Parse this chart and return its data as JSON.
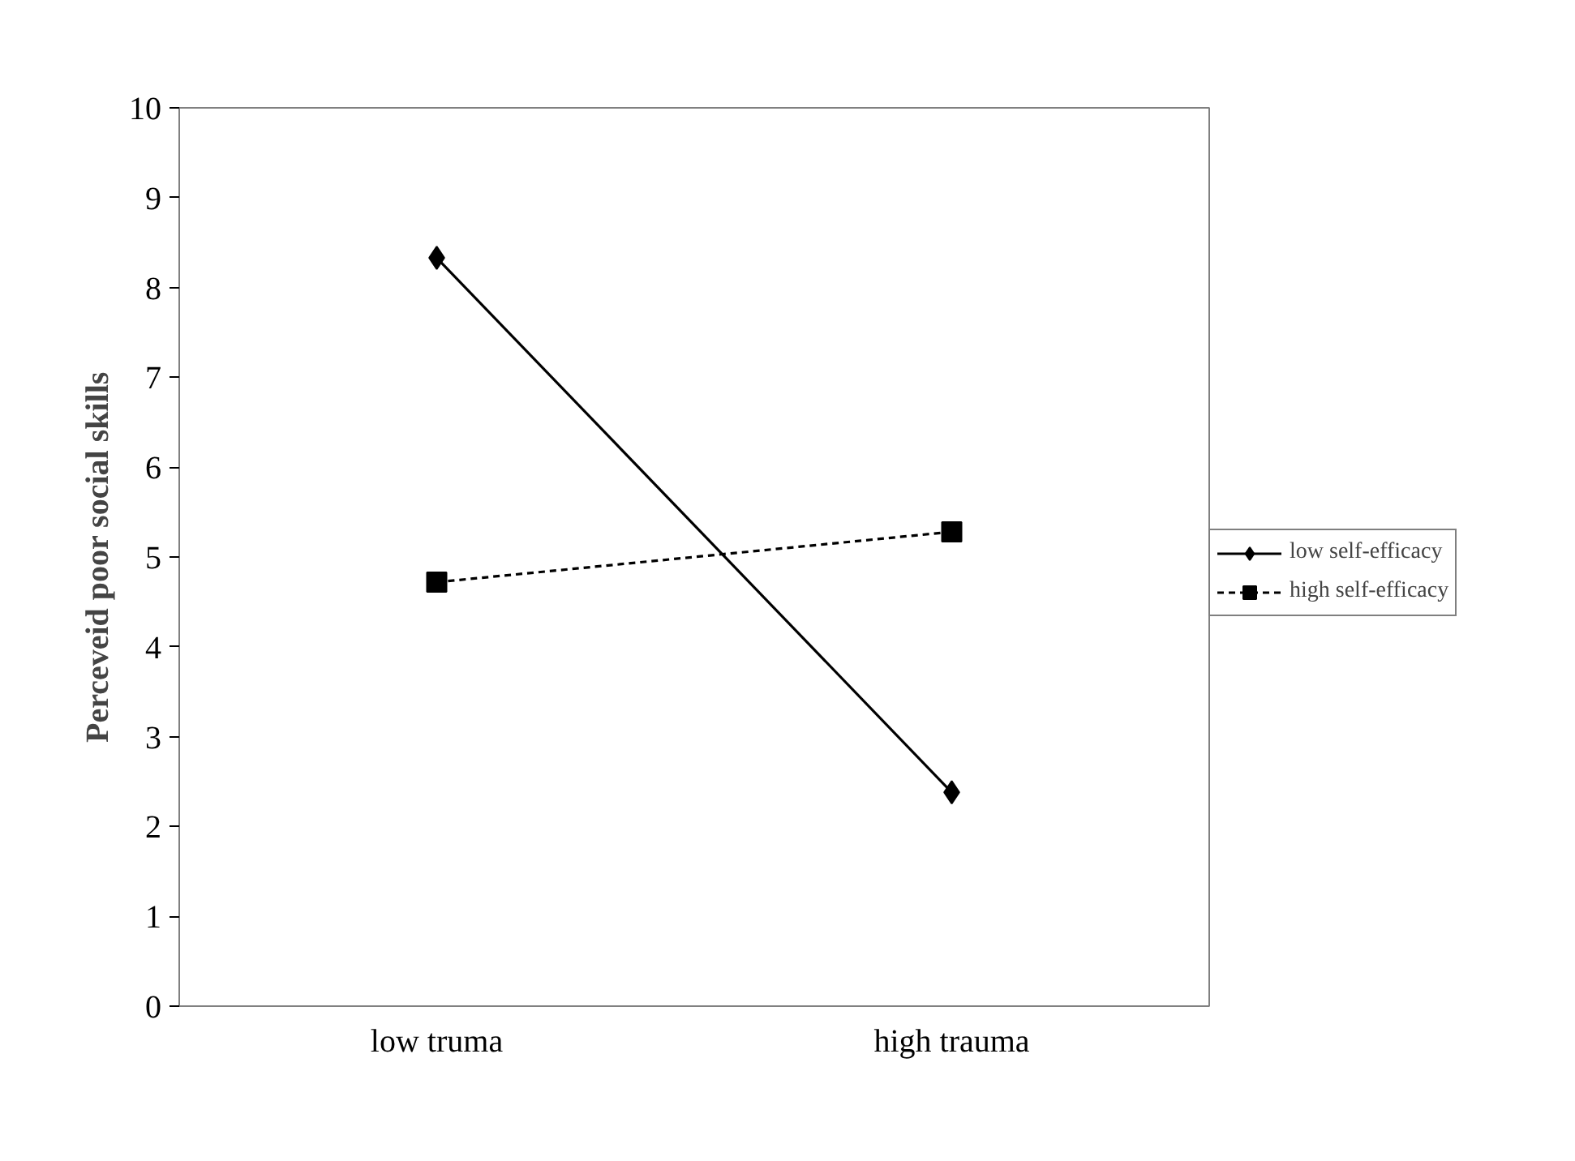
{
  "chart_data": {
    "type": "line",
    "ylabel": "Perceveid poor social skills",
    "categories": [
      "low truma",
      "high trauma"
    ],
    "series": [
      {
        "name": "low self-efficacy",
        "color": "#000000",
        "values": [
          8.33,
          2.38
        ],
        "marker": "diamond",
        "line_style": "solid"
      },
      {
        "name": "high self-efficacy",
        "color": "#000000",
        "values": [
          4.72,
          5.28
        ],
        "marker": "square",
        "line_style": "dashed"
      }
    ],
    "ylim": [
      0,
      10
    ],
    "yticks": [
      0,
      1,
      2,
      3,
      4,
      5,
      6,
      7,
      8,
      9,
      10
    ],
    "grid": false,
    "legend": "right"
  }
}
